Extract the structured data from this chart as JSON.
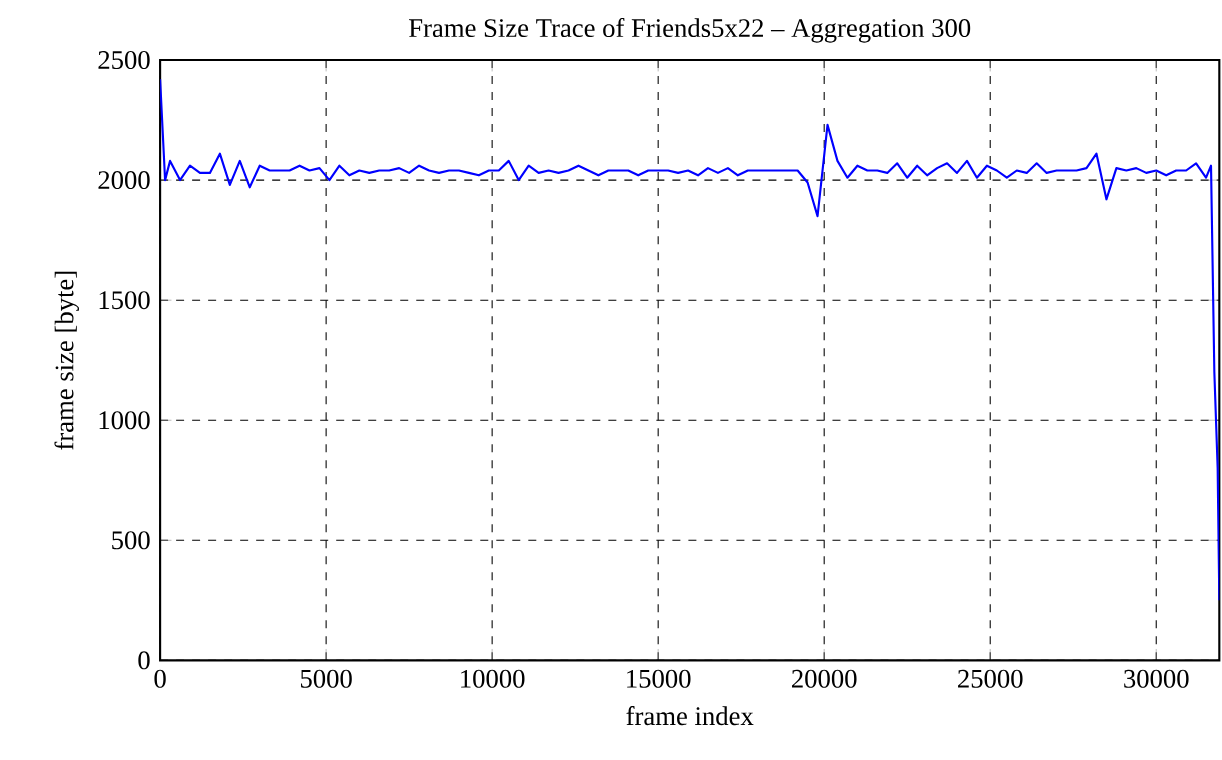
{
  "chart_data": {
    "type": "line",
    "title": "Frame Size Trace of Friends5x22 – Aggregation 300",
    "xlabel": "frame index",
    "ylabel": "frame size [byte]",
    "x": [
      0,
      150,
      300,
      600,
      900,
      1200,
      1500,
      1800,
      2100,
      2400,
      2700,
      3000,
      3300,
      3600,
      3900,
      4200,
      4500,
      4800,
      5100,
      5400,
      5700,
      6000,
      6300,
      6600,
      6900,
      7200,
      7500,
      7800,
      8100,
      8400,
      8700,
      9000,
      9300,
      9600,
      9900,
      10200,
      10500,
      10800,
      11100,
      11400,
      11700,
      12000,
      12300,
      12600,
      12900,
      13200,
      13500,
      13800,
      14100,
      14400,
      14700,
      15000,
      15300,
      15600,
      15900,
      16200,
      16500,
      16800,
      17100,
      17400,
      17700,
      18000,
      18300,
      18600,
      18900,
      19200,
      19500,
      19800,
      20100,
      20400,
      20700,
      21000,
      21300,
      21600,
      21900,
      22200,
      22500,
      22800,
      23100,
      23400,
      23700,
      24000,
      24300,
      24600,
      24900,
      25200,
      25500,
      25800,
      26100,
      26400,
      26700,
      27000,
      27300,
      27600,
      27900,
      28200,
      28500,
      28800,
      29100,
      29400,
      29700,
      30000,
      30300,
      30600,
      30900,
      31200,
      31500,
      31650,
      31750,
      31850,
      31900
    ],
    "values": [
      2420,
      2000,
      2080,
      2000,
      2060,
      2030,
      2030,
      2110,
      1980,
      2080,
      1970,
      2060,
      2040,
      2040,
      2040,
      2060,
      2040,
      2050,
      2000,
      2060,
      2020,
      2040,
      2030,
      2040,
      2040,
      2050,
      2030,
      2060,
      2040,
      2030,
      2040,
      2040,
      2030,
      2020,
      2040,
      2040,
      2080,
      2000,
      2060,
      2030,
      2040,
      2030,
      2040,
      2060,
      2040,
      2020,
      2040,
      2040,
      2040,
      2020,
      2040,
      2040,
      2040,
      2030,
      2040,
      2020,
      2050,
      2030,
      2050,
      2020,
      2040,
      2040,
      2040,
      2040,
      2040,
      2040,
      1990,
      1850,
      2230,
      2080,
      2010,
      2060,
      2040,
      2040,
      2030,
      2070,
      2010,
      2060,
      2020,
      2050,
      2070,
      2030,
      2080,
      2010,
      2060,
      2040,
      2010,
      2040,
      2030,
      2070,
      2030,
      2040,
      2040,
      2040,
      2050,
      2110,
      1920,
      2050,
      2040,
      2050,
      2030,
      2040,
      2020,
      2040,
      2040,
      2070,
      2010,
      2060,
      1200,
      800,
      250
    ],
    "color": "#0000ff",
    "xlim": [
      0,
      31900
    ],
    "ylim": [
      0,
      2500
    ],
    "xticks": [
      0,
      5000,
      10000,
      15000,
      20000,
      25000,
      30000
    ],
    "yticks": [
      0,
      500,
      1000,
      1500,
      2000,
      2500
    ],
    "grid": true,
    "line_style": "solid",
    "marker": "none"
  }
}
